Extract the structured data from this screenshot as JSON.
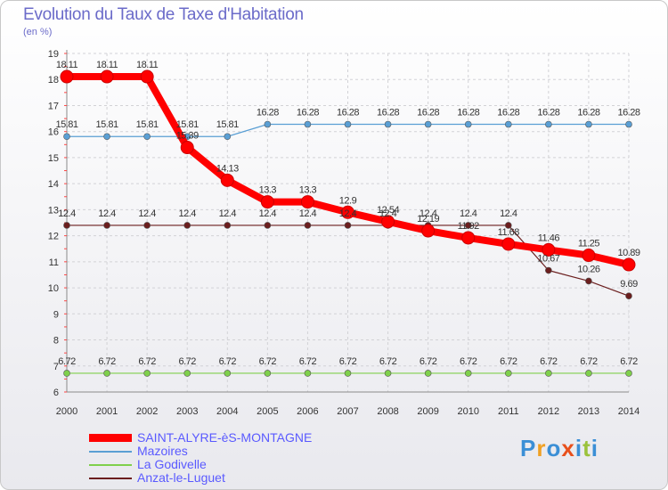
{
  "title": "Evolution du Taux de Taxe d'Habitation",
  "unit": "(en %)",
  "brand": {
    "letters": [
      "P",
      "r",
      "o",
      "x",
      "i",
      "t",
      "i"
    ],
    "colors": [
      "#3b8fd6",
      "#f0a023",
      "#3b8fd6",
      "#e8501c",
      "#3b8fd6",
      "#9bc23c",
      "#3b8fd6"
    ]
  },
  "chart_data": {
    "type": "line",
    "x": [
      2000,
      2001,
      2002,
      2003,
      2004,
      2005,
      2006,
      2007,
      2008,
      2009,
      2010,
      2011,
      2012,
      2013,
      2014
    ],
    "ylim": [
      6,
      19
    ],
    "yticks": [
      6,
      7,
      8,
      9,
      10,
      11,
      12,
      13,
      14,
      15,
      16,
      17,
      18,
      19
    ],
    "grid": true,
    "legend_position": "bottom",
    "series": [
      {
        "name": "SAINT-ALYRE-èS-MONTAGNE",
        "color": "#ff0000",
        "values": [
          18.11,
          18.11,
          18.11,
          15.39,
          14.13,
          13.3,
          13.3,
          12.9,
          12.54,
          12.19,
          11.92,
          11.68,
          11.46,
          11.25,
          10.89
        ],
        "labels": [
          "18.11",
          "18.11",
          "18.11",
          "15.39",
          "14.13",
          "13.3",
          "13.3",
          "12.9",
          "12.54",
          "12.19",
          "11.92",
          "11.68",
          "11.46",
          "11.25",
          "10.89"
        ]
      },
      {
        "name": "Mazoires",
        "color": "#5a9fd4",
        "values": [
          15.81,
          15.81,
          15.81,
          15.81,
          15.81,
          16.28,
          16.28,
          16.28,
          16.28,
          16.28,
          16.28,
          16.28,
          16.28,
          16.28,
          16.28
        ],
        "labels": [
          "15.81",
          "15.81",
          "15.81",
          "15.81",
          "15.81",
          "16.28",
          "16.28",
          "16.28",
          "16.28",
          "16.28",
          "16.28",
          "16.28",
          "16.28",
          "16.28",
          "16.28"
        ]
      },
      {
        "name": "La Godivelle",
        "color": "#7fd04b",
        "values": [
          6.72,
          6.72,
          6.72,
          6.72,
          6.72,
          6.72,
          6.72,
          6.72,
          6.72,
          6.72,
          6.72,
          6.72,
          6.72,
          6.72,
          6.72
        ],
        "labels": [
          "6.72",
          "6.72",
          "6.72",
          "6.72",
          "6.72",
          "6.72",
          "6.72",
          "6.72",
          "6.72",
          "6.72",
          "6.72",
          "6.72",
          "6.72",
          "6.72",
          "6.72"
        ]
      },
      {
        "name": "Anzat-le-Luguet",
        "color": "#6b1e1e",
        "values": [
          12.4,
          12.4,
          12.4,
          12.4,
          12.4,
          12.4,
          12.4,
          12.4,
          12.4,
          12.4,
          12.4,
          12.4,
          10.67,
          10.26,
          9.69
        ],
        "labels": [
          "12.4",
          "12.4",
          "12.4",
          "12.4",
          "12.4",
          "12.4",
          "12.4",
          "12.4",
          "12.4",
          "12.4",
          "12.4",
          "12.4",
          "10.67",
          "10.26",
          "9.69"
        ]
      }
    ]
  }
}
